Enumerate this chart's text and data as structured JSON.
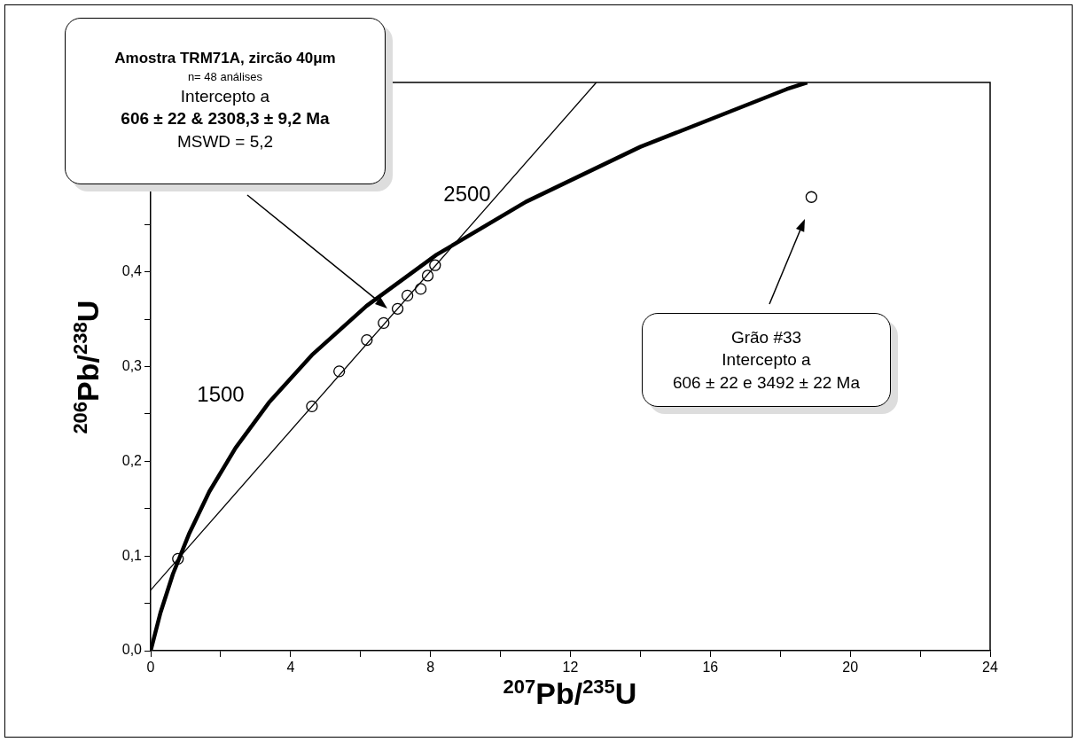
{
  "chart_data": {
    "type": "scatter",
    "xlabel": "$^{207}$Pb/$^{235}$U",
    "ylabel": "$^{206}$Pb/$^{238}$U",
    "xlim": [
      0,
      24
    ],
    "ylim": [
      0,
      0.6
    ],
    "xticks": [
      0,
      {
        "value": 2,
        "label": null
      },
      4,
      {
        "value": 6,
        "label": null
      },
      8,
      {
        "value": 10,
        "label": null
      },
      12,
      {
        "value": 14,
        "label": null
      },
      16,
      {
        "value": 18,
        "label": null
      },
      20,
      {
        "value": 22,
        "label": null
      },
      24
    ],
    "yticks": [
      {
        "value": 0,
        "label": "0,0"
      },
      {
        "value": 0.05,
        "label": null
      },
      {
        "value": 0.1,
        "label": "0,1"
      },
      {
        "value": 0.15,
        "label": null
      },
      {
        "value": 0.2,
        "label": "0,2"
      },
      {
        "value": 0.25,
        "label": null
      },
      {
        "value": 0.3,
        "label": "0,3"
      },
      {
        "value": 0.35,
        "label": null
      },
      {
        "value": 0.4,
        "label": "0,4"
      },
      {
        "value": 0.45,
        "label": null
      },
      {
        "value": 0.5,
        "label": null
      },
      {
        "value": 0.55,
        "label": null
      },
      {
        "value": 0.6,
        "label": null
      }
    ],
    "series": [
      {
        "type": "line",
        "color": "#000000",
        "marker": "none",
        "x": [
          0,
          0.279,
          0.636,
          1.093,
          1.677,
          2.425,
          3.381,
          4.605,
          6.17,
          8.171,
          10.73,
          14.0,
          18.19,
          18.77
        ],
        "values": [
          0,
          0.04,
          0.081,
          0.123,
          0.168,
          0.214,
          0.262,
          0.312,
          0.364,
          0.418,
          0.474,
          0.532,
          0.593,
          0.6
        ]
      },
      {
        "type": "line",
        "color": "#000000",
        "marker": "none",
        "x": [
          0,
          12.74
        ],
        "values": [
          0.064,
          0.6
        ]
      },
      {
        "color": "#000000",
        "marker": "circle",
        "x": [
          0.78,
          4.61,
          5.39,
          6.18,
          6.66,
          7.06,
          7.34,
          7.72,
          7.92,
          8.13,
          18.89
        ],
        "values": [
          0.097,
          0.258,
          0.295,
          0.328,
          0.346,
          0.361,
          0.375,
          0.382,
          0.396,
          0.407,
          0.479
        ]
      }
    ],
    "annotations": [
      "Amostra TRM71A, zircão 40μm\nn= 48 análises\nIntercepto a\n606 ± 22 & 2308,3 ± 9,2 Ma\nMSWD = 5,2",
      "Grão #33\nIntercepto a\n606 ± 22 e 3492 ± 22 Ma",
      "1500",
      "2500"
    ],
    "grid": false,
    "legend": false
  }
}
